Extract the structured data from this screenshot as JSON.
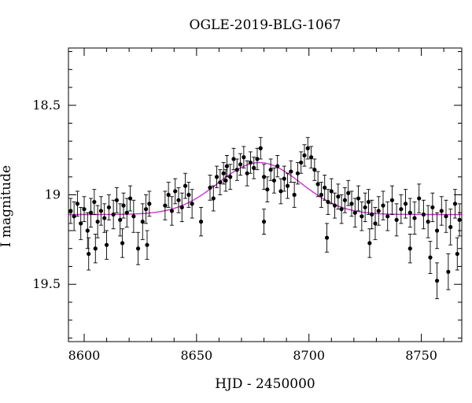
{
  "chart_data": {
    "type": "scatter",
    "title": "OGLE-2019-BLG-1067",
    "xlabel": "HJD - 2450000",
    "ylabel": "I magnitude",
    "xlim": [
      8593,
      8768
    ],
    "ylim": [
      19.82,
      18.18
    ],
    "y_inverted": true,
    "grid": false,
    "x_ticks": [
      8600,
      8650,
      8700,
      8750
    ],
    "x_tick_labels": [
      "8600",
      "8650",
      "8700",
      "8750"
    ],
    "y_ticks": [
      18.5,
      19,
      19.5
    ],
    "y_tick_labels": [
      "18.5",
      "19",
      "19.5"
    ],
    "colors": {
      "points": "#000000",
      "model": "#cc33cc"
    },
    "series": [
      {
        "kind": "points-with-errorbars",
        "x": [
          8594,
          8595.5,
          8597,
          8598.5,
          8600,
          8601.5,
          8603,
          8604.5,
          8606,
          8607.5,
          8609,
          8611,
          8613,
          8614.5,
          8616,
          8617.5,
          8619,
          8620.5,
          8622,
          8626,
          8627.5,
          8629,
          8636,
          8637.5,
          8639,
          8640.5,
          8642,
          8643.5,
          8645,
          8646.5,
          8648,
          8656,
          8657.5,
          8659,
          8660.5,
          8662,
          8663.5,
          8665,
          8666.5,
          8668,
          8669.5,
          8671,
          8672.5,
          8674,
          8675.5,
          8677,
          8678.5,
          8680,
          8681.5,
          8683,
          8684.5,
          8686,
          8687.5,
          8689,
          8690.5,
          8692,
          8693.5,
          8695,
          8696.5,
          8698,
          8699.5,
          8701,
          8702.5,
          8704,
          8705.5,
          8707,
          8708.5,
          8710,
          8711.5,
          8713,
          8714.5,
          8716,
          8717.5,
          8719,
          8720.5,
          8722,
          8723.5,
          8725,
          8726.5,
          8728,
          8729.5,
          8731,
          8733,
          8735,
          8737,
          8739,
          8741,
          8743,
          8745,
          8747,
          8749,
          8751,
          8753,
          8755,
          8757,
          8759,
          8761,
          8763,
          8765,
          8767
        ],
        "y": [
          19.09,
          19.12,
          19.05,
          19.16,
          19.08,
          19.2,
          19.1,
          19.04,
          19.15,
          19.09,
          19.13,
          19.07,
          19.11,
          19.03,
          19.14,
          19.06,
          19.1,
          19.02,
          19.12,
          19.15,
          19.08,
          19.05,
          19.06,
          19.0,
          19.09,
          18.98,
          19.03,
          19.07,
          18.95,
          19.0,
          19.05,
          18.96,
          19.02,
          18.9,
          18.93,
          18.88,
          18.84,
          18.9,
          18.8,
          18.86,
          18.83,
          18.79,
          18.88,
          18.82,
          18.85,
          18.8,
          18.74,
          18.9,
          18.97,
          18.86,
          18.92,
          18.84,
          18.98,
          18.91,
          18.95,
          18.87,
          19.0,
          18.88,
          18.82,
          18.78,
          18.74,
          18.79,
          18.86,
          18.94,
          19.0,
          18.96,
          19.04,
          18.98,
          19.06,
          19.01,
          19.08,
          19.03,
          18.99,
          19.05,
          19.1,
          19.02,
          19.12,
          19.07,
          19.04,
          19.11,
          19.16,
          19.09,
          19.06,
          19.12,
          19.03,
          19.14,
          19.08,
          19.05,
          19.1,
          19.13,
          19.02,
          19.11,
          19.15,
          19.07,
          19.2,
          19.09,
          19.12,
          19.18,
          19.05,
          19.14
        ],
        "yerr": [
          0.07,
          0.08,
          0.07,
          0.09,
          0.07,
          0.1,
          0.08,
          0.07,
          0.09,
          0.08,
          0.08,
          0.07,
          0.08,
          0.07,
          0.09,
          0.07,
          0.08,
          0.07,
          0.09,
          0.1,
          0.08,
          0.07,
          0.08,
          0.07,
          0.08,
          0.07,
          0.07,
          0.08,
          0.07,
          0.07,
          0.08,
          0.07,
          0.07,
          0.06,
          0.07,
          0.06,
          0.06,
          0.07,
          0.06,
          0.06,
          0.06,
          0.06,
          0.07,
          0.06,
          0.06,
          0.06,
          0.06,
          0.07,
          0.07,
          0.06,
          0.07,
          0.06,
          0.07,
          0.07,
          0.07,
          0.06,
          0.07,
          0.06,
          0.06,
          0.06,
          0.06,
          0.06,
          0.06,
          0.07,
          0.07,
          0.07,
          0.07,
          0.07,
          0.07,
          0.07,
          0.08,
          0.07,
          0.07,
          0.07,
          0.08,
          0.07,
          0.08,
          0.08,
          0.07,
          0.08,
          0.09,
          0.08,
          0.08,
          0.08,
          0.08,
          0.09,
          0.08,
          0.08,
          0.08,
          0.09,
          0.08,
          0.08,
          0.09,
          0.08,
          0.1,
          0.08,
          0.09,
          0.1,
          0.08,
          0.09
        ]
      },
      {
        "kind": "outliers-with-errorbars",
        "x": [
          8602,
          8605,
          8610,
          8617,
          8624,
          8628,
          8652,
          8663,
          8680,
          8708,
          8727,
          8745,
          8754,
          8757,
          8762,
          8766
        ],
        "y": [
          19.33,
          19.3,
          19.28,
          19.27,
          19.3,
          19.28,
          19.15,
          18.92,
          19.15,
          19.24,
          19.27,
          19.3,
          19.35,
          19.48,
          19.43,
          19.33
        ],
        "yerr": [
          0.09,
          0.08,
          0.08,
          0.08,
          0.09,
          0.08,
          0.08,
          0.06,
          0.07,
          0.08,
          0.08,
          0.08,
          0.09,
          0.1,
          0.1,
          0.09
        ]
      },
      {
        "kind": "model-curve",
        "baseline": 19.11,
        "peak_mag": 18.82,
        "peak_x": 8678,
        "width": 26
      }
    ]
  }
}
